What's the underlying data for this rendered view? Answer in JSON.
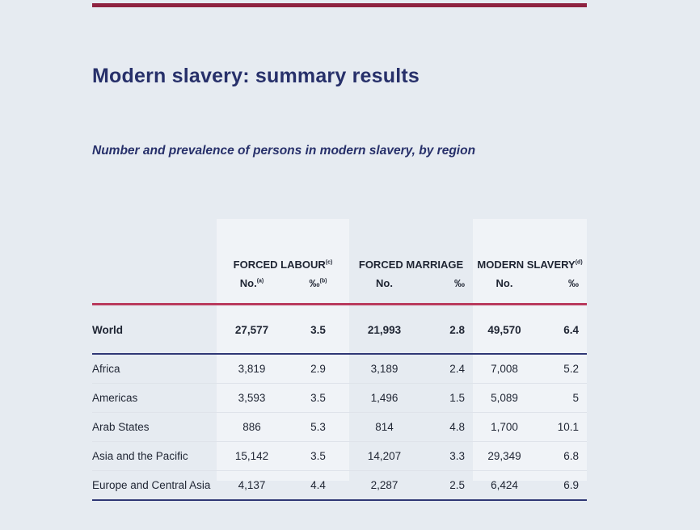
{
  "title": "Modern slavery: summary results",
  "subtitle": "Number and prevalence of persons in modern slavery, by region",
  "table": {
    "groups": [
      {
        "label": "FORCED LABOUR",
        "note": "(c)"
      },
      {
        "label": "FORCED MARRIAGE",
        "note": ""
      },
      {
        "label": "MODERN SLAVERY",
        "note": "(d)"
      }
    ],
    "subheaders": [
      {
        "label": "No.",
        "note": "(a)"
      },
      {
        "label": "‰",
        "note": "(b)"
      },
      {
        "label": "No.",
        "note": ""
      },
      {
        "label": "‰",
        "note": ""
      },
      {
        "label": "No.",
        "note": ""
      },
      {
        "label": "‰",
        "note": ""
      }
    ],
    "world": {
      "region": "World",
      "values": [
        "27,577",
        "3.5",
        "21,993",
        "2.8",
        "49,570",
        "6.4"
      ]
    },
    "rows": [
      {
        "region": "Africa",
        "values": [
          "3,819",
          "2.9",
          "3,189",
          "2.4",
          "7,008",
          "5.2"
        ]
      },
      {
        "region": "Americas",
        "values": [
          "3,593",
          "3.5",
          "1,496",
          "1.5",
          "5,089",
          "5"
        ]
      },
      {
        "region": "Arab States",
        "values": [
          "886",
          "5.3",
          "814",
          "4.8",
          "1,700",
          "10.1"
        ]
      },
      {
        "region": "Asia and the Pacific",
        "values": [
          "15,142",
          "3.5",
          "14,207",
          "3.3",
          "29,349",
          "6.8"
        ]
      },
      {
        "region": "Europe and Central Asia",
        "values": [
          "4,137",
          "4.4",
          "2,287",
          "2.5",
          "6,424",
          "6.9"
        ]
      }
    ]
  }
}
